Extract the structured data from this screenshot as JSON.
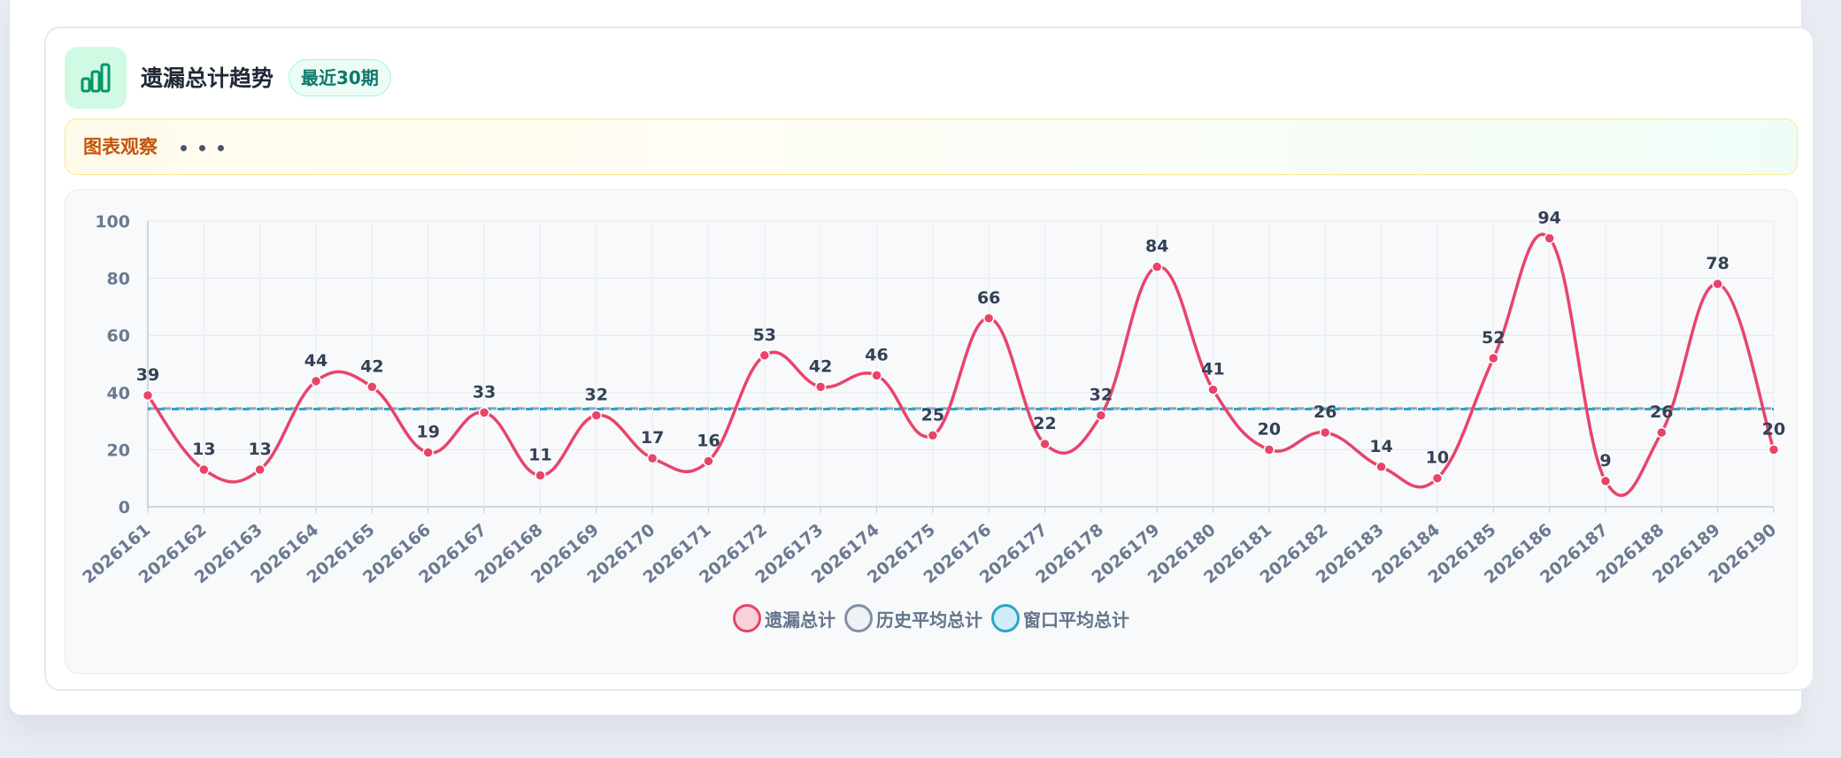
{
  "header": {
    "title": "遗漏总计趋势",
    "badge": "最近30期"
  },
  "observation": {
    "label": "图表观察"
  },
  "colors": {
    "accent": "#10b981",
    "series_main": "#e8446a",
    "series_hist": "#94a3b8",
    "series_window": "#2aa6c9"
  },
  "chart_data": {
    "type": "line",
    "categories": [
      "2026161",
      "2026162",
      "2026163",
      "2026164",
      "2026165",
      "2026166",
      "2026167",
      "2026168",
      "2026169",
      "2026170",
      "2026171",
      "2026172",
      "2026173",
      "2026174",
      "2026175",
      "2026176",
      "2026177",
      "2026178",
      "2026179",
      "2026180",
      "2026181",
      "2026182",
      "2026183",
      "2026184",
      "2026185",
      "2026186",
      "2026187",
      "2026188",
      "2026189",
      "2026190"
    ],
    "series": [
      {
        "name": "遗漏总计",
        "color": "#e8446a",
        "style": "smooth-solid",
        "show_labels": true,
        "values": [
          39,
          13,
          13,
          44,
          42,
          19,
          33,
          11,
          32,
          17,
          16,
          53,
          42,
          46,
          25,
          66,
          22,
          32,
          84,
          41,
          20,
          26,
          14,
          10,
          52,
          94,
          9,
          26,
          78,
          20
        ]
      },
      {
        "name": "历史平均总计",
        "color": "#94a3b8",
        "style": "dashed",
        "values": [
          34.4,
          34.4,
          34.4,
          34.4,
          34.4,
          34.4,
          34.4,
          34.4,
          34.4,
          34.4,
          34.4,
          34.4,
          34.4,
          34.4,
          34.4,
          34.4,
          34.4,
          34.4,
          34.4,
          34.4,
          34.4,
          34.4,
          34.4,
          34.4,
          34.4,
          34.4,
          34.4,
          34.4,
          34.4,
          34.4
        ]
      },
      {
        "name": "窗口平均总计",
        "color": "#2aa6c9",
        "style": "dashed",
        "values": [
          34.2,
          34.2,
          34.2,
          34.2,
          34.2,
          34.2,
          34.2,
          34.2,
          34.2,
          34.2,
          34.2,
          34.2,
          34.2,
          34.2,
          34.2,
          34.2,
          34.2,
          34.2,
          34.2,
          34.2,
          34.2,
          34.2,
          34.2,
          34.2,
          34.2,
          34.2,
          34.2,
          34.2,
          34.2,
          34.2
        ]
      }
    ],
    "title": "遗漏总计趋势",
    "xlabel": "",
    "ylabel": "",
    "ylim": [
      0,
      100
    ],
    "yticks": [
      0,
      20,
      40,
      60,
      80,
      100
    ],
    "grid": true,
    "legend": "bottom-center"
  }
}
